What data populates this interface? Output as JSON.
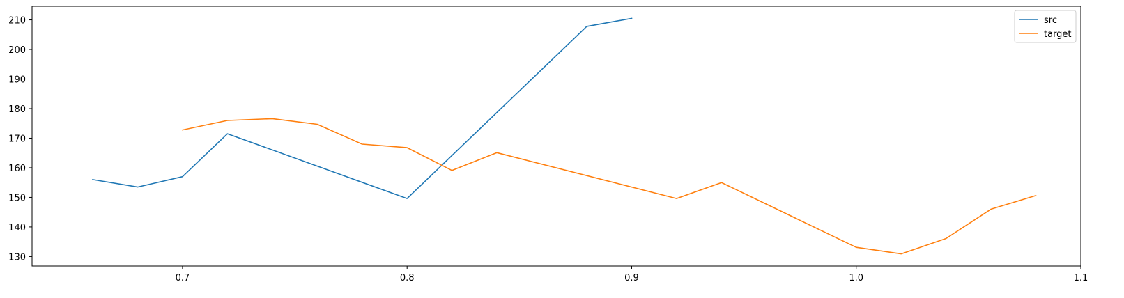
{
  "chart_data": {
    "type": "line",
    "title": "",
    "xlabel": "",
    "ylabel": "",
    "xlim": [
      0.633,
      1.1
    ],
    "ylim": [
      126.8,
      214.6
    ],
    "xticks": [
      0.7,
      0.8,
      0.9,
      1.0,
      1.1
    ],
    "xtick_labels": [
      "0.7",
      "0.8",
      "0.9",
      "1.0",
      "1.1"
    ],
    "yticks": [
      130,
      140,
      150,
      160,
      170,
      180,
      190,
      200,
      210
    ],
    "ytick_labels": [
      "130",
      "140",
      "150",
      "160",
      "170",
      "180",
      "190",
      "200",
      "210"
    ],
    "grid": false,
    "legend_position": "upper right",
    "series": [
      {
        "name": "src",
        "color": "#1f77b4",
        "x": [
          0.66,
          0.68,
          0.7,
          0.72,
          0.8,
          0.88,
          0.9
        ],
        "y": [
          156.0,
          153.5,
          157.0,
          171.5,
          149.6,
          207.8,
          210.5
        ]
      },
      {
        "name": "target",
        "color": "#ff7f0e",
        "x": [
          0.7,
          0.72,
          0.74,
          0.76,
          0.78,
          0.8,
          0.82,
          0.84,
          0.92,
          0.94,
          1.0,
          1.02,
          1.04,
          1.06,
          1.08
        ],
        "y": [
          172.8,
          176.0,
          176.6,
          174.7,
          168.0,
          166.8,
          159.1,
          165.1,
          149.6,
          155.0,
          133.1,
          130.9,
          136.1,
          146.0,
          150.6
        ]
      }
    ]
  }
}
